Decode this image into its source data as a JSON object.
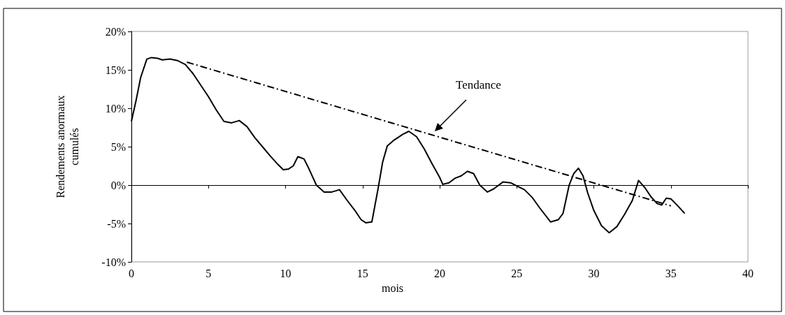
{
  "chart_data": {
    "type": "line",
    "xlabel": "mois",
    "ylabel": "Rendements anormaux cumulés",
    "xlim": [
      0,
      40
    ],
    "xticks": [
      0,
      5,
      10,
      15,
      20,
      25,
      30,
      35,
      40
    ],
    "ylim": [
      -10,
      20
    ],
    "yticks": [
      {
        "value": -10,
        "label": "-10%"
      },
      {
        "value": -5,
        "label": "-5%"
      },
      {
        "value": 0,
        "label": "0%"
      },
      {
        "value": 5,
        "label": "5%"
      },
      {
        "value": 10,
        "label": "10%"
      },
      {
        "value": 15,
        "label": "15%"
      },
      {
        "value": 20,
        "label": "20%"
      }
    ],
    "marker": "none",
    "annotations": [
      "Tendance"
    ],
    "series": [
      {
        "color": "#000000",
        "line_style": "solid",
        "x": [
          0,
          0.3,
          0.6,
          1,
          1.3,
          1.7,
          2,
          2.5,
          3,
          3.5,
          4,
          4.5,
          5,
          5.5,
          6,
          6.5,
          7,
          7.5,
          8,
          8.5,
          9,
          9.5,
          9.85,
          10.2,
          10.5,
          10.8,
          11.2,
          11.5,
          12,
          12.5,
          13,
          13.5,
          14,
          14.5,
          14.9,
          15.2,
          15.6,
          16,
          16.3,
          16.6,
          17,
          17.3,
          17.6,
          18,
          18.5,
          19,
          19.5,
          20,
          20.2,
          20.6,
          21,
          21.4,
          21.8,
          22.2,
          22.6,
          23.1,
          23.5,
          24.1,
          24.6,
          25,
          25.5,
          26,
          26.5,
          27.2,
          27.7,
          28,
          28.4,
          28.7,
          29,
          29.3,
          29.6,
          30,
          30.5,
          31,
          31.5,
          32,
          32.5,
          32.9,
          33.3,
          33.7,
          34.1,
          34.4,
          34.7,
          35,
          35.4,
          35.9
        ],
        "values": [
          8.3,
          11,
          14,
          16.4,
          16.6,
          16.5,
          16.3,
          16.4,
          16.2,
          15.7,
          14.5,
          13,
          11.5,
          9.8,
          8.3,
          8.1,
          8.4,
          7.6,
          6.2,
          5,
          3.8,
          2.7,
          2.0,
          2.1,
          2.5,
          3.7,
          3.4,
          2.2,
          0.0,
          -0.9,
          -0.9,
          -0.6,
          -2,
          -3.3,
          -4.5,
          -4.9,
          -4.8,
          -0.5,
          3.0,
          5.1,
          5.8,
          6.2,
          6.6,
          7.0,
          6.3,
          4.7,
          2.8,
          1.0,
          0.1,
          0.3,
          0.9,
          1.2,
          1.8,
          1.5,
          0.0,
          -0.9,
          -0.5,
          0.4,
          0.3,
          -0.1,
          -0.6,
          -1.6,
          -3.0,
          -4.8,
          -4.5,
          -3.7,
          0.0,
          1.5,
          2.2,
          1.2,
          -1,
          -3.3,
          -5.3,
          -6.2,
          -5.4,
          -3.8,
          -2.0,
          0.6,
          -0.3,
          -1.5,
          -2.4,
          -2.6,
          -1.7,
          -1.8,
          -2.6,
          -3.7
        ]
      },
      {
        "color": "#000000",
        "line_style": "dashed",
        "x": [
          3.6,
          35
        ],
        "values": [
          16,
          -2.7
        ]
      }
    ]
  }
}
